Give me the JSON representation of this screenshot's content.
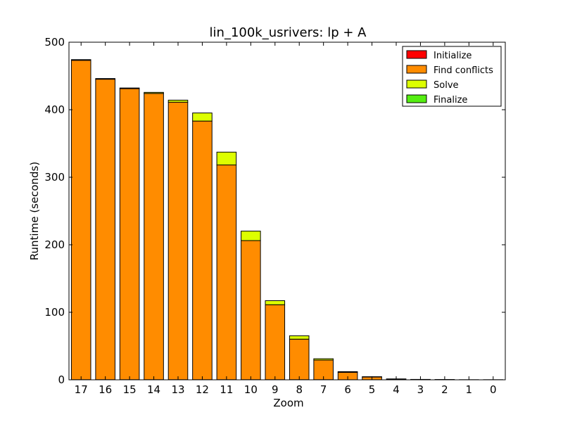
{
  "chart_data": {
    "type": "bar",
    "stacked": true,
    "title": "lin_100k_usrivers: lp + A",
    "xlabel": "Zoom",
    "ylabel": "Runtime (seconds)",
    "ylim": [
      0,
      500
    ],
    "yticks": [
      0,
      100,
      200,
      300,
      400,
      500
    ],
    "categories": [
      "17",
      "16",
      "15",
      "14",
      "13",
      "12",
      "11",
      "10",
      "9",
      "8",
      "7",
      "6",
      "5",
      "4",
      "3",
      "2",
      "1",
      "0"
    ],
    "series": [
      {
        "name": "Initialize",
        "color": "#ff0000",
        "values": [
          0.2,
          0.2,
          0.2,
          0.2,
          0.2,
          0.2,
          0.2,
          0.2,
          0.2,
          0.2,
          0.2,
          0.1,
          0.1,
          0.1,
          0,
          0,
          0,
          0
        ]
      },
      {
        "name": "Find conflicts",
        "color": "#ff8c00",
        "values": [
          473,
          445,
          431,
          424,
          411,
          383,
          318,
          206,
          111,
          60,
          29,
          11,
          4,
          1,
          0.5,
          0.3,
          0.2,
          0.2
        ]
      },
      {
        "name": "Solve",
        "color": "#ddff00",
        "values": [
          1,
          1,
          1,
          1.5,
          3,
          12,
          19,
          14,
          6,
          5,
          2,
          1,
          0.5,
          0.2,
          0.1,
          0.1,
          0,
          0
        ]
      },
      {
        "name": "Finalize",
        "color": "#55ee11",
        "values": [
          0,
          0,
          0,
          0,
          0,
          0,
          0,
          0,
          0,
          0,
          0,
          0,
          0,
          0,
          0,
          0,
          0,
          0
        ]
      }
    ],
    "legend": "top-right",
    "grid": false
  }
}
